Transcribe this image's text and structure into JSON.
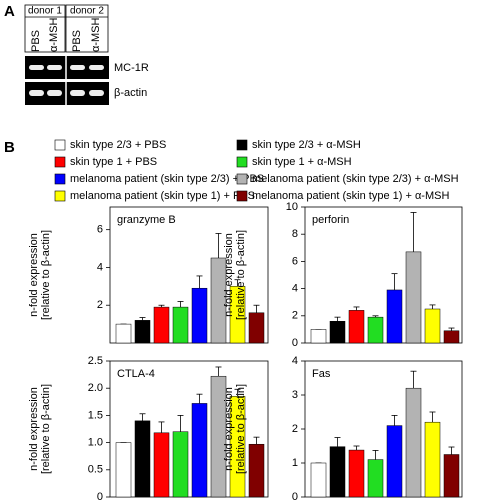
{
  "panel_labels": [
    "A",
    "B"
  ],
  "panel_a": {
    "donors": [
      "donor 1",
      "donor 2"
    ],
    "lanes": [
      "PBS",
      "α-MSH",
      "PBS",
      "α-MSH"
    ],
    "genes": [
      "MC-1R",
      "β-actin"
    ]
  },
  "legend": {
    "entries": [
      {
        "name": "skin type 2/3 + PBS",
        "color": "#ffffff"
      },
      {
        "name": "skin type 2/3 + α-MSH",
        "color": "#000000"
      },
      {
        "name": "skin type 1 + PBS",
        "color": "#ff0000"
      },
      {
        "name": "skin type 1 + α-MSH",
        "color": "#22dd22"
      },
      {
        "name": "melanoma patient (skin type 2/3) + PBS",
        "color": "#0000ff"
      },
      {
        "name": "melanoma patient (skin type 2/3) + α-MSH",
        "color": "#b3b3b3"
      },
      {
        "name": "melanoma patient (skin type 1) + PBS",
        "color": "#ffff00"
      },
      {
        "name": "melanoma patient (skin type 1) + α-MSH",
        "color": "#800000"
      }
    ]
  },
  "chart_data": [
    {
      "type": "bar",
      "title": "granzyme B",
      "ylabel": [
        "n-fold expression",
        "[relative to β-actin]"
      ],
      "categories": [
        null,
        null,
        null,
        null,
        null,
        null,
        null,
        null
      ],
      "values": [
        1.0,
        1.2,
        1.9,
        1.9,
        2.9,
        4.5,
        3.0,
        1.6
      ],
      "errors": [
        0,
        0.15,
        0.1,
        0.3,
        0.65,
        1.3,
        0.35,
        0.4
      ],
      "ylim": [
        0,
        7.2
      ],
      "yticks": [
        2,
        4,
        6
      ]
    },
    {
      "type": "bar",
      "title": "perforin",
      "ylabel": [
        "n-fold expression",
        "[relative to β-actin]"
      ],
      "categories": [
        null,
        null,
        null,
        null,
        null,
        null,
        null,
        null
      ],
      "values": [
        1.0,
        1.6,
        2.4,
        1.9,
        3.9,
        6.7,
        2.5,
        0.9
      ],
      "errors": [
        0,
        0.3,
        0.25,
        0.1,
        1.2,
        2.9,
        0.3,
        0.2
      ],
      "ylim": [
        0,
        10
      ],
      "yticks": [
        0,
        2,
        4,
        6,
        8,
        10
      ]
    },
    {
      "type": "bar",
      "title": "CTLA-4",
      "ylabel": [
        "n-fold expression",
        "[relative to β-actin]"
      ],
      "categories": [
        null,
        null,
        null,
        null,
        null,
        null,
        null,
        null
      ],
      "values": [
        1.0,
        1.4,
        1.18,
        1.2,
        1.72,
        2.22,
        1.85,
        0.97
      ],
      "errors": [
        0,
        0.13,
        0.2,
        0.3,
        0.17,
        0.17,
        0.13,
        0.13
      ],
      "ylim": [
        0,
        2.5
      ],
      "yticks": [
        0,
        0.5,
        {
          "value": 1,
          "label": "1.0"
        },
        1.5,
        {
          "value": 2,
          "label": "2.0"
        },
        2.5
      ]
    },
    {
      "type": "bar",
      "title": "Fas",
      "ylabel": [
        "n-fold expression",
        "[relative to β-actin]"
      ],
      "categories": [
        null,
        null,
        null,
        null,
        null,
        null,
        null,
        null
      ],
      "values": [
        1.0,
        1.48,
        1.38,
        1.1,
        2.1,
        3.2,
        2.2,
        1.25
      ],
      "errors": [
        0,
        0.27,
        0.12,
        0.27,
        0.3,
        0.5,
        0.3,
        0.22
      ],
      "ylim": [
        0,
        4
      ],
      "yticks": [
        0,
        1,
        2,
        3,
        4
      ]
    }
  ]
}
